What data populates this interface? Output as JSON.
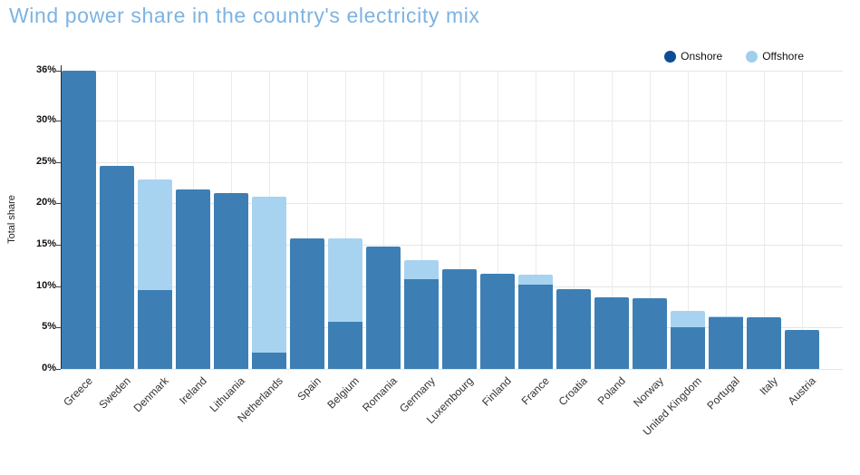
{
  "title": "Wind power share in the country's electricity mix",
  "legend": {
    "items": [
      {
        "label": "Onshore",
        "dot_color": "#0d4c96"
      },
      {
        "label": "Offshore",
        "dot_color": "#9fceee"
      }
    ]
  },
  "colors": {
    "title": "#7cb3e3",
    "onshore_bar": "#3d7fb4",
    "offshore_bar": "#a7d3f0",
    "gridline": "#e6e6e6",
    "axis_line": "#2b2b2b",
    "tick_text": "#111111",
    "country_text": "#333333"
  },
  "chart_data": {
    "type": "bar",
    "stacked": true,
    "title": "Wind power share in the country's electricity mix",
    "xlabel": "",
    "ylabel": "Total share",
    "ylim": [
      0,
      36
    ],
    "yticks": [
      0,
      5,
      10,
      15,
      20,
      25,
      30,
      36
    ],
    "ytick_suffix": "%",
    "grid": true,
    "legend_position": "top-right",
    "categories": [
      "Greece",
      "Sweden",
      "Denmark",
      "Ireland",
      "Lithuania",
      "Netherlands",
      "Spain",
      "Belgium",
      "Romania",
      "Germany",
      "Luxembourg",
      "Finland",
      "France",
      "Croatia",
      "Poland",
      "Norway",
      "United Kingdom",
      "Portugal",
      "Italy",
      "Austria"
    ],
    "series": [
      {
        "name": "Onshore",
        "color": "#3d7fb4",
        "values": [
          36.0,
          24.5,
          9.5,
          21.7,
          21.2,
          2.0,
          15.8,
          5.7,
          14.8,
          10.8,
          12.0,
          11.5,
          10.2,
          9.6,
          8.6,
          8.5,
          5.0,
          6.2,
          6.2,
          4.7
        ]
      },
      {
        "name": "Offshore",
        "color": "#a7d3f0",
        "values": [
          0,
          0,
          13.4,
          0,
          0,
          18.8,
          0,
          10.1,
          0,
          2.3,
          0,
          0,
          1.2,
          0,
          0,
          0,
          2.0,
          0.2,
          0,
          0
        ]
      }
    ]
  }
}
